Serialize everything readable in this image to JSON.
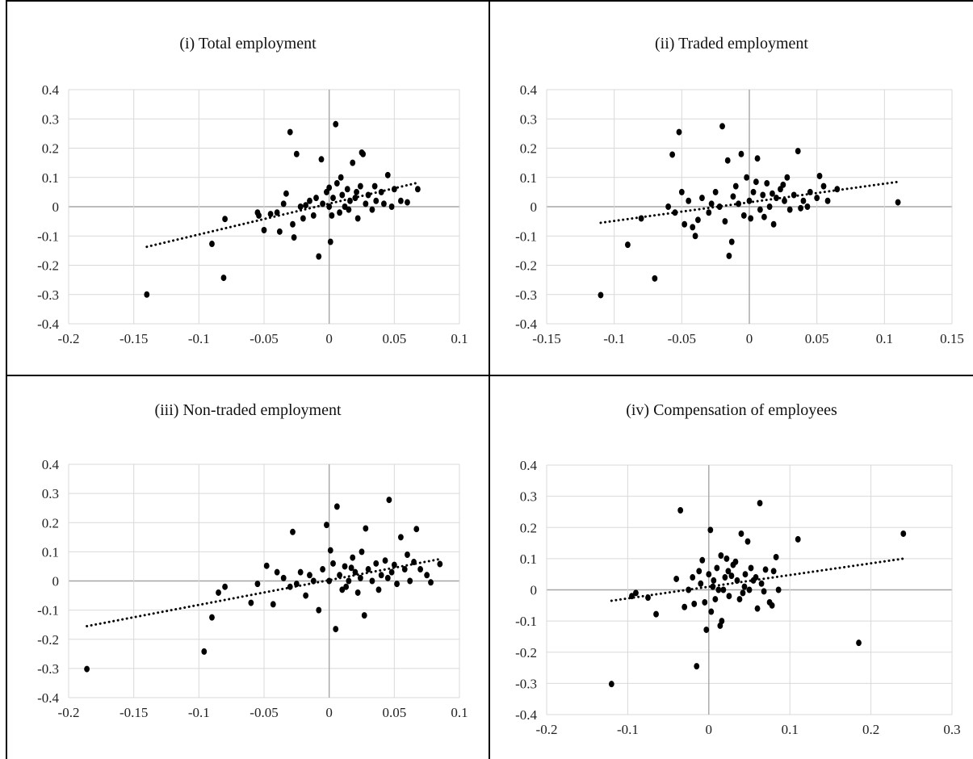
{
  "chart_data": [
    {
      "type": "scatter",
      "title": "(i) Total employment",
      "xlabel": "",
      "ylabel": "",
      "xlim": [
        -0.2,
        0.1
      ],
      "ylim": [
        -0.4,
        0.4
      ],
      "xticks": [
        -0.2,
        -0.15,
        -0.1,
        -0.05,
        0,
        0.05,
        0.1
      ],
      "xtick_labels": [
        "-0.2",
        "-0.15",
        "-0.1",
        "-0.05",
        "0",
        "0.05",
        "0.1"
      ],
      "yticks": [
        -0.4,
        -0.3,
        -0.2,
        -0.1,
        0,
        0.1,
        0.2,
        0.3,
        0.4
      ],
      "ytick_labels": [
        "-0.4",
        "-0.3",
        "-0.2",
        "-0.1",
        "0",
        "0.1",
        "0.2",
        "0.3",
        "0.4"
      ],
      "grid": true,
      "trendline": {
        "style": "dotted",
        "from": [
          -0.14,
          -0.137
        ],
        "to": [
          0.068,
          0.082
        ]
      },
      "points": [
        [
          -0.14,
          -0.3
        ],
        [
          -0.09,
          -0.127
        ],
        [
          -0.081,
          -0.243
        ],
        [
          -0.08,
          -0.042
        ],
        [
          -0.055,
          -0.02
        ],
        [
          -0.054,
          -0.03
        ],
        [
          -0.05,
          -0.08
        ],
        [
          -0.045,
          -0.025
        ],
        [
          -0.038,
          -0.085
        ],
        [
          -0.035,
          0.01
        ],
        [
          -0.03,
          0.255
        ],
        [
          -0.028,
          -0.06
        ],
        [
          -0.027,
          -0.105
        ],
        [
          -0.025,
          0.18
        ],
        [
          -0.022,
          0.0
        ],
        [
          -0.02,
          -0.04
        ],
        [
          -0.015,
          0.02
        ],
        [
          -0.012,
          -0.03
        ],
        [
          -0.008,
          -0.17
        ],
        [
          -0.006,
          0.162
        ],
        [
          -0.005,
          0.01
        ],
        [
          -0.002,
          0.05
        ],
        [
          0.0,
          0.0
        ],
        [
          0.001,
          -0.12
        ],
        [
          0.003,
          0.03
        ],
        [
          0.005,
          0.282
        ],
        [
          0.006,
          0.08
        ],
        [
          0.008,
          -0.02
        ],
        [
          0.01,
          0.04
        ],
        [
          0.012,
          0.0
        ],
        [
          0.014,
          0.06
        ],
        [
          0.016,
          0.02
        ],
        [
          0.018,
          0.15
        ],
        [
          0.02,
          0.03
        ],
        [
          0.022,
          -0.04
        ],
        [
          0.024,
          0.07
        ],
        [
          0.025,
          0.185
        ],
        [
          0.026,
          0.18
        ],
        [
          0.028,
          0.01
        ],
        [
          0.03,
          0.04
        ],
        [
          0.033,
          -0.01
        ],
        [
          0.036,
          0.02
        ],
        [
          0.04,
          0.05
        ],
        [
          0.045,
          0.108
        ],
        [
          0.048,
          0.0
        ],
        [
          0.05,
          0.06
        ],
        [
          0.055,
          0.02
        ],
        [
          0.06,
          0.015
        ],
        [
          0.068,
          0.06
        ],
        [
          -0.033,
          0.045
        ],
        [
          -0.018,
          0.005
        ],
        [
          -0.01,
          0.03
        ],
        [
          0.0,
          0.065
        ],
        [
          0.002,
          -0.03
        ],
        [
          0.009,
          0.1
        ],
        [
          0.015,
          -0.01
        ],
        [
          0.021,
          0.05
        ],
        [
          0.035,
          0.07
        ],
        [
          0.042,
          0.01
        ],
        [
          -0.04,
          -0.02
        ]
      ]
    },
    {
      "type": "scatter",
      "title": "(ii) Traded employment",
      "xlabel": "",
      "ylabel": "",
      "xlim": [
        -0.15,
        0.15
      ],
      "ylim": [
        -0.4,
        0.4
      ],
      "xticks": [
        -0.15,
        -0.1,
        -0.05,
        0,
        0.05,
        0.1,
        0.15
      ],
      "xtick_labels": [
        "-0.15",
        "-0.1",
        "-0.05",
        "0",
        "0.05",
        "0.1",
        "0.15"
      ],
      "yticks": [
        -0.4,
        -0.3,
        -0.2,
        -0.1,
        0,
        0.1,
        0.2,
        0.3,
        0.4
      ],
      "ytick_labels": [
        "-0.4",
        "-0.3",
        "-0.2",
        "-0.1",
        "0",
        "0.1",
        "0.2",
        "0.3",
        "0.4"
      ],
      "grid": true,
      "trendline": {
        "style": "dotted",
        "from": [
          -0.11,
          -0.055
        ],
        "to": [
          0.11,
          0.085
        ]
      },
      "points": [
        [
          -0.11,
          -0.302
        ],
        [
          -0.09,
          -0.13
        ],
        [
          -0.08,
          -0.04
        ],
        [
          -0.07,
          -0.245
        ],
        [
          -0.06,
          0.0
        ],
        [
          -0.057,
          0.178
        ],
        [
          -0.055,
          -0.02
        ],
        [
          -0.052,
          0.255
        ],
        [
          -0.05,
          0.05
        ],
        [
          -0.048,
          -0.06
        ],
        [
          -0.045,
          0.02
        ],
        [
          -0.04,
          -0.1
        ],
        [
          -0.035,
          0.03
        ],
        [
          -0.03,
          -0.02
        ],
        [
          -0.025,
          0.05
        ],
        [
          -0.022,
          0.0
        ],
        [
          -0.02,
          0.275
        ],
        [
          -0.018,
          -0.05
        ],
        [
          -0.016,
          0.158
        ],
        [
          -0.015,
          -0.168
        ],
        [
          -0.013,
          -0.12
        ],
        [
          -0.01,
          0.07
        ],
        [
          -0.008,
          0.01
        ],
        [
          -0.006,
          0.18
        ],
        [
          -0.004,
          -0.03
        ],
        [
          -0.002,
          0.1
        ],
        [
          0.0,
          0.02
        ],
        [
          0.003,
          0.05
        ],
        [
          0.006,
          0.165
        ],
        [
          0.008,
          -0.01
        ],
        [
          0.01,
          0.04
        ],
        [
          0.013,
          0.08
        ],
        [
          0.015,
          0.0
        ],
        [
          0.018,
          -0.06
        ],
        [
          0.02,
          0.03
        ],
        [
          0.023,
          0.06
        ],
        [
          0.026,
          0.02
        ],
        [
          0.03,
          -0.01
        ],
        [
          0.033,
          0.04
        ],
        [
          0.036,
          0.19
        ],
        [
          0.04,
          0.02
        ],
        [
          0.045,
          0.05
        ],
        [
          0.05,
          0.03
        ],
        [
          0.052,
          0.105
        ],
        [
          0.055,
          0.07
        ],
        [
          0.058,
          0.02
        ],
        [
          0.065,
          0.06
        ],
        [
          0.11,
          0.015
        ],
        [
          -0.038,
          -0.045
        ],
        [
          -0.028,
          0.01
        ],
        [
          -0.012,
          0.035
        ],
        [
          0.005,
          0.085
        ],
        [
          0.011,
          -0.035
        ],
        [
          0.017,
          0.045
        ],
        [
          0.025,
          0.075
        ],
        [
          0.038,
          -0.005
        ],
        [
          -0.042,
          -0.07
        ],
        [
          0.001,
          -0.04
        ],
        [
          0.028,
          0.1
        ],
        [
          0.043,
          0.0
        ]
      ]
    },
    {
      "type": "scatter",
      "title": "(iii) Non-traded employment",
      "xlabel": "",
      "ylabel": "",
      "xlim": [
        -0.2,
        0.1
      ],
      "ylim": [
        -0.4,
        0.4
      ],
      "xticks": [
        -0.2,
        -0.15,
        -0.1,
        -0.05,
        0,
        0.05,
        0.1
      ],
      "xtick_labels": [
        "-0.2",
        "-0.15",
        "-0.1",
        "-0.05",
        "0",
        "0.05",
        "0.1"
      ],
      "yticks": [
        -0.4,
        -0.3,
        -0.2,
        -0.1,
        0,
        0.1,
        0.2,
        0.3,
        0.4
      ],
      "ytick_labels": [
        "-0.4",
        "-0.3",
        "-0.2",
        "-0.1",
        "0",
        "0.1",
        "0.2",
        "0.3",
        "0.4"
      ],
      "grid": true,
      "trendline": {
        "style": "dotted",
        "from": [
          -0.186,
          -0.155
        ],
        "to": [
          0.085,
          0.075
        ]
      },
      "points": [
        [
          -0.186,
          -0.302
        ],
        [
          -0.096,
          -0.242
        ],
        [
          -0.09,
          -0.125
        ],
        [
          -0.085,
          -0.04
        ],
        [
          -0.08,
          -0.02
        ],
        [
          -0.06,
          -0.075
        ],
        [
          -0.055,
          -0.01
        ],
        [
          -0.048,
          0.052
        ],
        [
          -0.043,
          -0.08
        ],
        [
          -0.035,
          0.01
        ],
        [
          -0.03,
          -0.02
        ],
        [
          -0.028,
          0.168
        ],
        [
          -0.022,
          0.03
        ],
        [
          -0.018,
          -0.05
        ],
        [
          -0.012,
          0.0
        ],
        [
          -0.008,
          -0.1
        ],
        [
          -0.005,
          0.04
        ],
        [
          -0.002,
          0.192
        ],
        [
          0.0,
          0.0
        ],
        [
          0.003,
          0.06
        ],
        [
          0.005,
          -0.165
        ],
        [
          0.006,
          0.255
        ],
        [
          0.008,
          0.02
        ],
        [
          0.01,
          -0.03
        ],
        [
          0.012,
          0.05
        ],
        [
          0.015,
          0.0
        ],
        [
          0.018,
          0.08
        ],
        [
          0.02,
          0.03
        ],
        [
          0.022,
          -0.04
        ],
        [
          0.025,
          0.1
        ],
        [
          0.027,
          -0.118
        ],
        [
          0.028,
          0.18
        ],
        [
          0.03,
          0.04
        ],
        [
          0.033,
          0.0
        ],
        [
          0.036,
          0.06
        ],
        [
          0.04,
          0.02
        ],
        [
          0.043,
          0.07
        ],
        [
          0.046,
          0.278
        ],
        [
          0.048,
          0.03
        ],
        [
          0.05,
          0.055
        ],
        [
          0.052,
          -0.01
        ],
        [
          0.055,
          0.15
        ],
        [
          0.058,
          0.04
        ],
        [
          0.062,
          0.0
        ],
        [
          0.065,
          0.065
        ],
        [
          0.067,
          0.178
        ],
        [
          0.07,
          0.04
        ],
        [
          0.075,
          0.02
        ],
        [
          0.078,
          -0.005
        ],
        [
          0.085,
          0.058
        ],
        [
          -0.04,
          0.03
        ],
        [
          -0.015,
          0.02
        ],
        [
          0.001,
          0.105
        ],
        [
          0.013,
          -0.02
        ],
        [
          0.024,
          0.01
        ],
        [
          0.038,
          -0.03
        ],
        [
          0.045,
          0.01
        ],
        [
          0.06,
          0.09
        ],
        [
          -0.025,
          -0.01
        ],
        [
          0.017,
          0.045
        ]
      ]
    },
    {
      "type": "scatter",
      "title": "(iv) Compensation of employees",
      "xlabel": "",
      "ylabel": "",
      "xlim": [
        -0.2,
        0.3
      ],
      "ylim": [
        -0.4,
        0.4
      ],
      "xticks": [
        -0.2,
        -0.1,
        0,
        0.1,
        0.2,
        0.3
      ],
      "xtick_labels": [
        "-0.2",
        "-0.1",
        "0",
        "0.1",
        "0.2",
        "0.3"
      ],
      "yticks": [
        -0.4,
        -0.3,
        -0.2,
        -0.1,
        0,
        0.1,
        0.2,
        0.3,
        0.4
      ],
      "ytick_labels": [
        "-0.4",
        "-0.3",
        "-0.2",
        "-0.1",
        "0",
        "0.1",
        "0.2",
        "0.3",
        "0.4"
      ],
      "grid": true,
      "trendline": {
        "style": "dotted",
        "from": [
          -0.12,
          -0.035
        ],
        "to": [
          0.24,
          0.1
        ]
      },
      "points": [
        [
          -0.12,
          -0.302
        ],
        [
          -0.095,
          -0.02
        ],
        [
          -0.09,
          -0.01
        ],
        [
          -0.075,
          -0.025
        ],
        [
          -0.065,
          -0.078
        ],
        [
          -0.04,
          0.035
        ],
        [
          -0.035,
          0.255
        ],
        [
          -0.03,
          -0.055
        ],
        [
          -0.025,
          0.0
        ],
        [
          -0.02,
          0.04
        ],
        [
          -0.015,
          -0.245
        ],
        [
          -0.01,
          0.02
        ],
        [
          -0.008,
          0.095
        ],
        [
          -0.005,
          -0.04
        ],
        [
          -0.003,
          -0.128
        ],
        [
          0.0,
          0.05
        ],
        [
          0.002,
          0.192
        ],
        [
          0.005,
          0.01
        ],
        [
          0.008,
          -0.03
        ],
        [
          0.01,
          0.07
        ],
        [
          0.012,
          0.0
        ],
        [
          0.014,
          -0.115
        ],
        [
          0.015,
          0.11
        ],
        [
          0.016,
          -0.1
        ],
        [
          0.02,
          0.04
        ],
        [
          0.022,
          0.1
        ],
        [
          0.025,
          -0.02
        ],
        [
          0.03,
          0.08
        ],
        [
          0.035,
          0.03
        ],
        [
          0.04,
          0.18
        ],
        [
          0.042,
          -0.01
        ],
        [
          0.045,
          0.05
        ],
        [
          0.048,
          0.155
        ],
        [
          0.05,
          0.0
        ],
        [
          0.055,
          0.03
        ],
        [
          0.06,
          -0.06
        ],
        [
          0.063,
          0.278
        ],
        [
          0.065,
          0.02
        ],
        [
          0.07,
          0.065
        ],
        [
          0.075,
          -0.04
        ],
        [
          0.08,
          0.06
        ],
        [
          0.083,
          0.105
        ],
        [
          0.086,
          0.0
        ],
        [
          0.11,
          0.162
        ],
        [
          0.185,
          -0.17
        ],
        [
          0.24,
          0.18
        ],
        [
          -0.012,
          0.06
        ],
        [
          0.018,
          0.0
        ],
        [
          0.028,
          0.045
        ],
        [
          0.038,
          -0.03
        ],
        [
          0.052,
          0.07
        ],
        [
          0.068,
          -0.005
        ],
        [
          0.078,
          -0.05
        ],
        [
          0.006,
          0.03
        ],
        [
          0.033,
          0.09
        ],
        [
          0.058,
          0.04
        ],
        [
          -0.018,
          -0.045
        ],
        [
          0.003,
          -0.07
        ],
        [
          0.024,
          0.06
        ],
        [
          0.044,
          0.01
        ]
      ]
    }
  ]
}
